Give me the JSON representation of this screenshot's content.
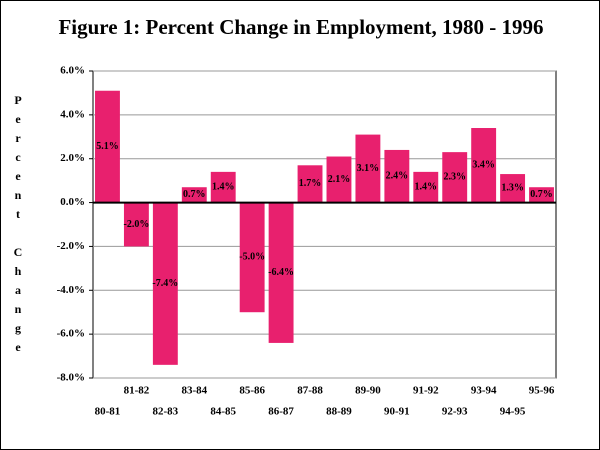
{
  "chart_data": {
    "type": "bar",
    "title": "Figure 1:  Percent Change in Employment, 1980 - 1996",
    "y_label": "Percent Change",
    "categories": [
      "80-81",
      "81-82",
      "82-83",
      "83-84",
      "84-85",
      "85-86",
      "86-87",
      "87-88",
      "88-89",
      "89-90",
      "90-91",
      "91-92",
      "92-93",
      "93-94",
      "94-95",
      "95-96"
    ],
    "values": [
      5.1,
      -2.0,
      -7.4,
      0.7,
      1.4,
      -5.0,
      -6.4,
      1.7,
      2.1,
      3.1,
      2.4,
      1.4,
      2.3,
      3.4,
      1.3,
      0.7
    ],
    "value_labels": [
      "5.1%",
      "-2.0%",
      "-7.4%",
      "0.7%",
      "1.4%",
      "-5.0%",
      "-6.4%",
      "1.7%",
      "2.1%",
      "3.1%",
      "2.4%",
      "1.4%",
      "2.3%",
      "3.4%",
      "1.3%",
      "0.7%"
    ],
    "color": "#e8206e",
    "ylim": [
      -8,
      6
    ],
    "yticks": [
      {
        "value": -8,
        "label": "-8.0%"
      },
      {
        "value": -6,
        "label": "-6.0%"
      },
      {
        "value": -4,
        "label": "-4.0%"
      },
      {
        "value": -2,
        "label": "-2.0%"
      },
      {
        "value": 0,
        "label": "0.0%"
      },
      {
        "value": 2,
        "label": "2.0%"
      },
      {
        "value": 4,
        "label": "4.0%"
      },
      {
        "value": 6,
        "label": "6.0%"
      }
    ],
    "grid": true
  }
}
